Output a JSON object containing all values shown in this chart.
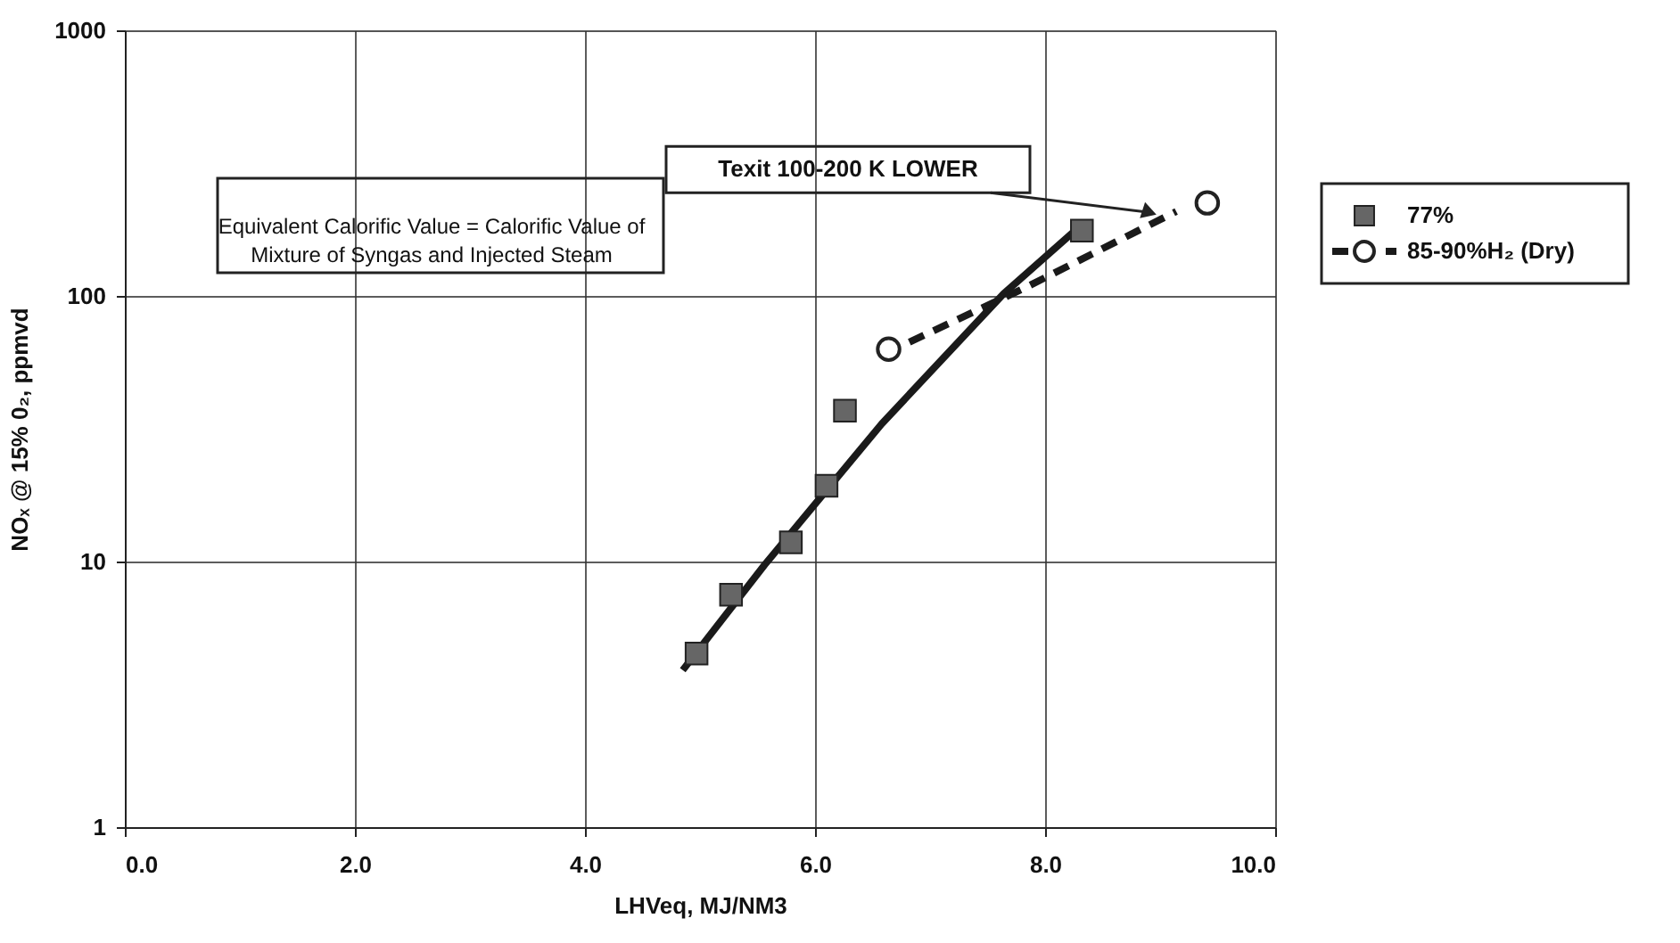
{
  "chart_data": {
    "type": "scatter",
    "xlabel": "LHVeq, MJ/NM3",
    "ylabel": "NOₓ @ 15% 0₂, ppmvd",
    "xlim": [
      0,
      10
    ],
    "ylim": [
      1,
      1000
    ],
    "xticks": [
      {
        "value": 0,
        "label": "0.0"
      },
      {
        "value": 2,
        "label": "2.0"
      },
      {
        "value": 4,
        "label": "4.0"
      },
      {
        "value": 6,
        "label": "6.0"
      },
      {
        "value": 8,
        "label": "8.0"
      },
      {
        "value": 10,
        "label": "10.0"
      }
    ],
    "yticks": [
      1,
      10,
      100,
      {
        "value": 1000,
        "label": "1000"
      }
    ],
    "log": true,
    "grid": true,
    "legend": "right",
    "series": [
      {
        "name": "77%",
        "type": "scatter",
        "marker": "square",
        "color": "#666666",
        "x": [
          4.97,
          5.27,
          5.79,
          6.1,
          6.26,
          8.32
        ],
        "values": [
          4.5,
          7.5,
          11.8,
          19.3,
          37,
          176
        ]
      },
      {
        "type": "line",
        "line_style": "solid",
        "marker": "none",
        "color": "#1a1a1a",
        "x": [
          4.85,
          5.56,
          6.58,
          7.64,
          8.26
        ],
        "values": [
          3.9,
          9.7,
          33,
          102,
          176
        ]
      },
      {
        "name": "85-90%H₂ (Dry)",
        "type": "scatter",
        "marker": "circle",
        "color": "#ffffff",
        "x": [
          6.64,
          9.41
        ],
        "values": [
          63,
          224
        ]
      },
      {
        "type": "line",
        "line_style": "dashed",
        "marker": "none",
        "color": "#1a1a1a",
        "x": [
          6.82,
          7.82,
          9.14
        ],
        "values": [
          67,
          107,
          208
        ]
      }
    ],
    "annotations": [
      {
        "text": "Texit 100-200 K LOWER",
        "x": 9.0,
        "y": 200
      },
      "Equivalent Calorific Value = Calorific Value of\nMixture of Syngas and Injected Steam"
    ]
  }
}
